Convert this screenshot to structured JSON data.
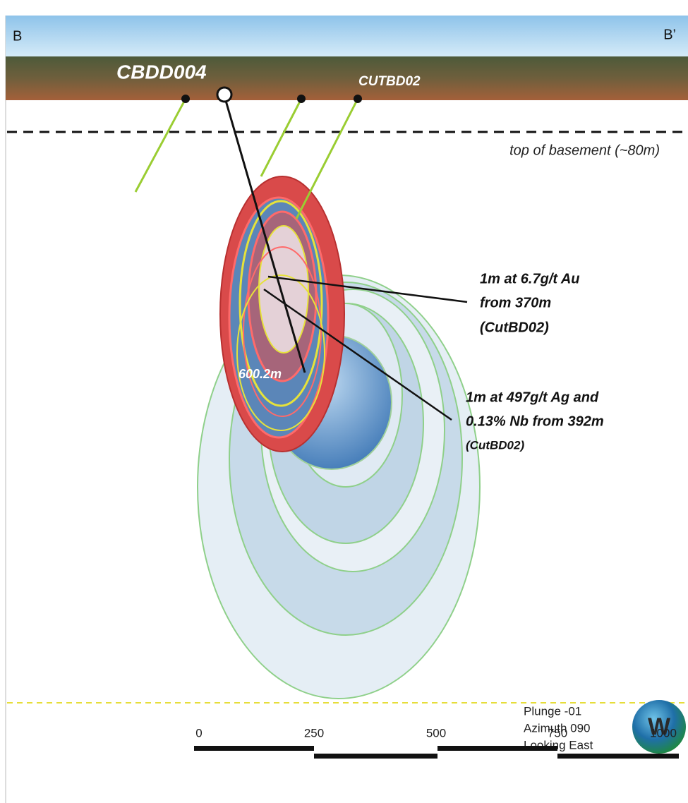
{
  "section": {
    "left_label": "B",
    "right_label": "B’",
    "basement_label": "top of basement (~80m)"
  },
  "drillholes": {
    "hole_a": "CBDD004",
    "hole_b": "CUTBD02",
    "end_depth": "600.2m"
  },
  "annotations": [
    {
      "lines": [
        "1m at 6.7g/t Au",
        "from 370m",
        "(CutBD02)"
      ]
    },
    {
      "lines": [
        "1m at 497g/t Ag and",
        "0.13% Nb from 392m",
        "(CutBD02)"
      ]
    }
  ],
  "view": {
    "lines": [
      "Plunge -01",
      "Azimuth 090",
      "Looking East"
    ],
    "compass": "W"
  },
  "scale_bar": {
    "labels": [
      "0",
      "250",
      "500",
      "750",
      "1000"
    ]
  }
}
